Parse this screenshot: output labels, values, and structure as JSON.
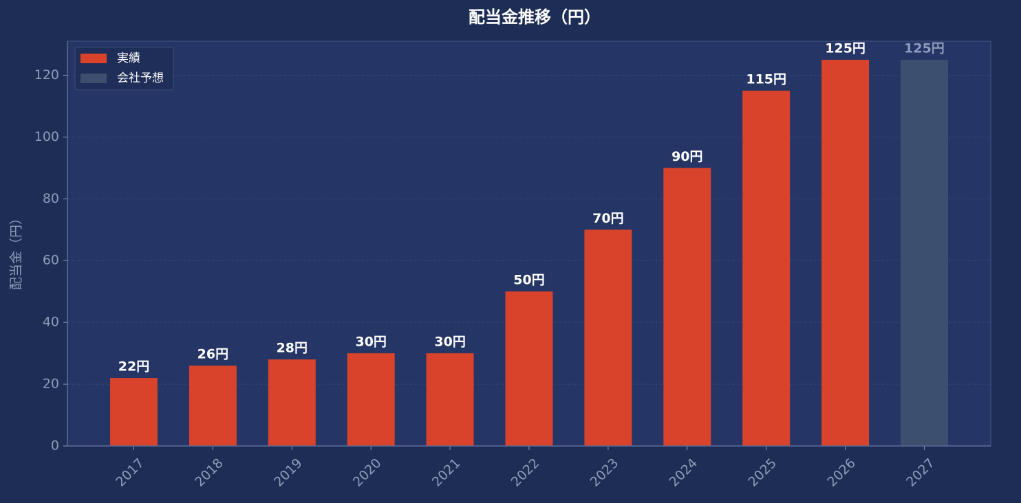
{
  "chart_data": {
    "type": "bar",
    "title": "配当金推移（円）",
    "y_label": "配当金（円）",
    "categories": [
      "2017",
      "2018",
      "2019",
      "2020",
      "2021",
      "2022",
      "2023",
      "2024",
      "2025",
      "2026",
      "2027"
    ],
    "series": [
      {
        "name": "実績",
        "color": "#d9432b",
        "label_color": "#ffffff",
        "values": [
          22,
          26,
          28,
          30,
          30,
          50,
          70,
          90,
          115,
          125,
          null
        ],
        "value_labels": [
          "22円",
          "26円",
          "28円",
          "30円",
          "30円",
          "50円",
          "70円",
          "90円",
          "115円",
          "125円",
          null
        ]
      },
      {
        "name": "会社予想",
        "color": "#3d4f6e",
        "label_color": "#8d9cb8",
        "values": [
          null,
          null,
          null,
          null,
          null,
          null,
          null,
          null,
          null,
          null,
          125
        ],
        "value_labels": [
          null,
          null,
          null,
          null,
          null,
          null,
          null,
          null,
          null,
          null,
          "125円"
        ]
      }
    ],
    "ylim": [
      0,
      131
    ],
    "yticks": [
      0,
      20,
      40,
      60,
      80,
      100,
      120
    ],
    "grid": true,
    "legend": "upper-left"
  }
}
